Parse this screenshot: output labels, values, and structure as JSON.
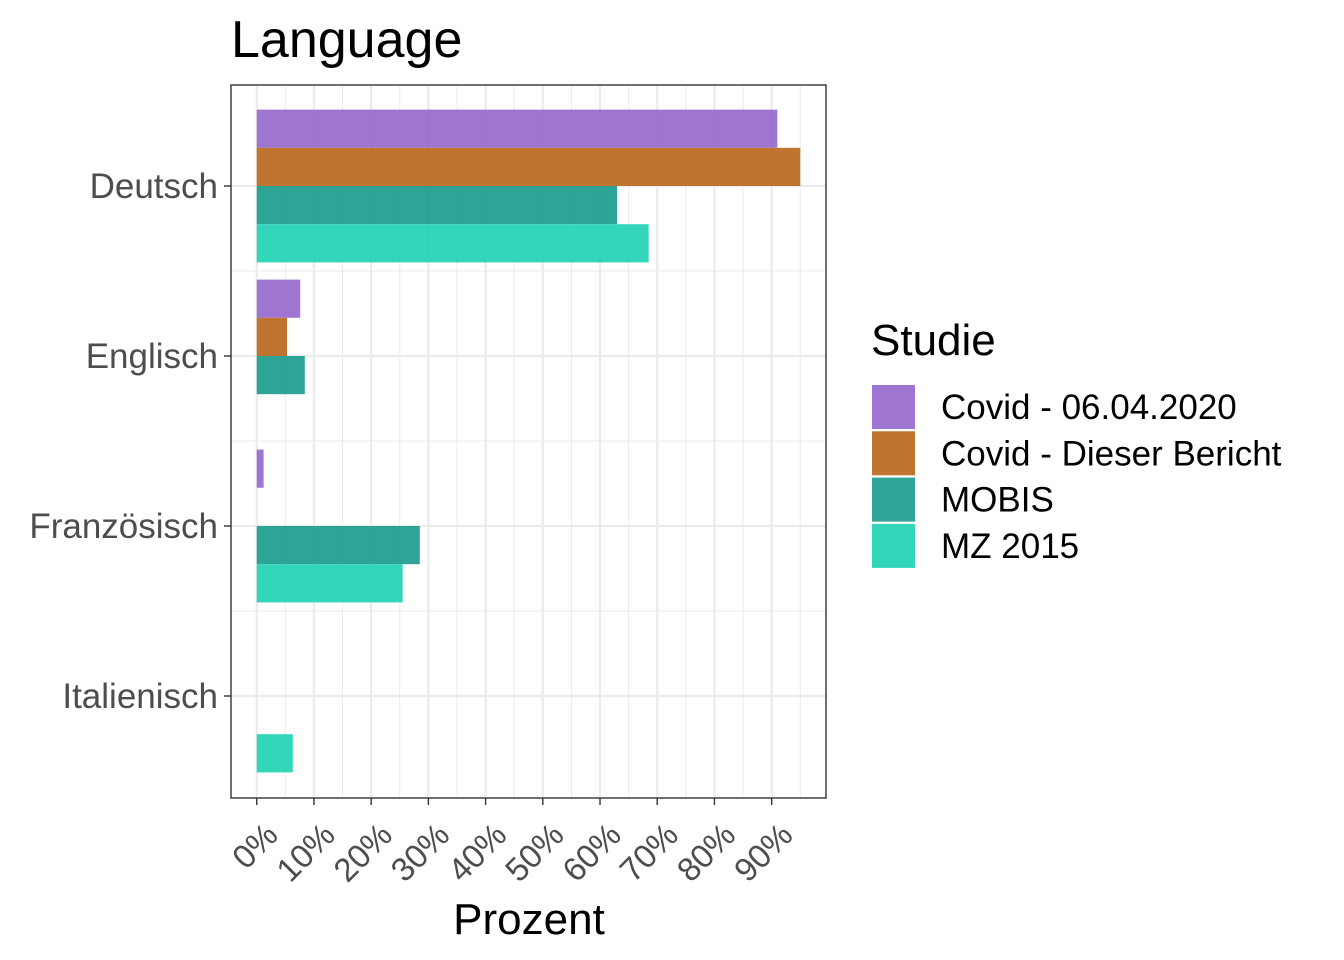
{
  "chart_data": {
    "type": "bar",
    "orientation": "horizontal",
    "title": "Language",
    "xlabel": "Prozent",
    "ylabel": "",
    "categories": [
      "Deutsch",
      "Englisch",
      "Französisch",
      "Italienisch"
    ],
    "x_ticks": [
      "0%",
      "10%",
      "20%",
      "30%",
      "40%",
      "50%",
      "60%",
      "70%",
      "80%",
      "90%"
    ],
    "xlim": [
      -4.5,
      99.5
    ],
    "legend_title": "Studie",
    "legend_position": "right",
    "grid": true,
    "series": [
      {
        "name": "Covid - 06.04.2020",
        "color": "#9467cc",
        "values": [
          91,
          7.6,
          1.2,
          null
        ]
      },
      {
        "name": "Covid - Dieser Bericht",
        "color": "#b8661a",
        "values": [
          95,
          5.3,
          null,
          null
        ]
      },
      {
        "name": "MOBIS",
        "color": "#179a8c",
        "values": [
          63,
          8.4,
          28.5,
          null
        ]
      },
      {
        "name": "MZ 2015",
        "color": "#1dd1b4",
        "values": [
          68.5,
          null,
          25.5,
          6.3
        ]
      }
    ]
  }
}
